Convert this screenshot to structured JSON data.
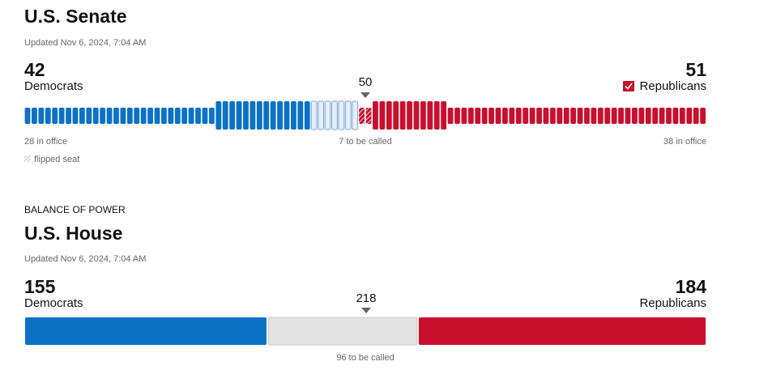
{
  "senate": {
    "title": "U.S. Senate",
    "updated": "Updated Nov 6, 2024, 7:04 AM",
    "majority": 50,
    "democrats": {
      "seats": 42,
      "name": "Democrats",
      "in_office": 28,
      "in_office_label": "28 in office"
    },
    "republicans": {
      "seats": 51,
      "name": "Republicans",
      "in_office": 38,
      "in_office_label": "38 in office",
      "flipped": 2
    },
    "uncalled": 7,
    "uncalled_label": "7 to be called",
    "legend": "flipped seat"
  },
  "house": {
    "kicker": "BALANCE OF POWER",
    "title": "U.S. House",
    "updated": "Updated Nov 6, 2024, 7:04 AM",
    "majority": 218,
    "democrats": {
      "seats": 155,
      "name": "Democrats"
    },
    "republicans": {
      "seats": 184,
      "name": "Republicans"
    },
    "uncalled": 96,
    "uncalled_label": "96 to be called"
  }
}
